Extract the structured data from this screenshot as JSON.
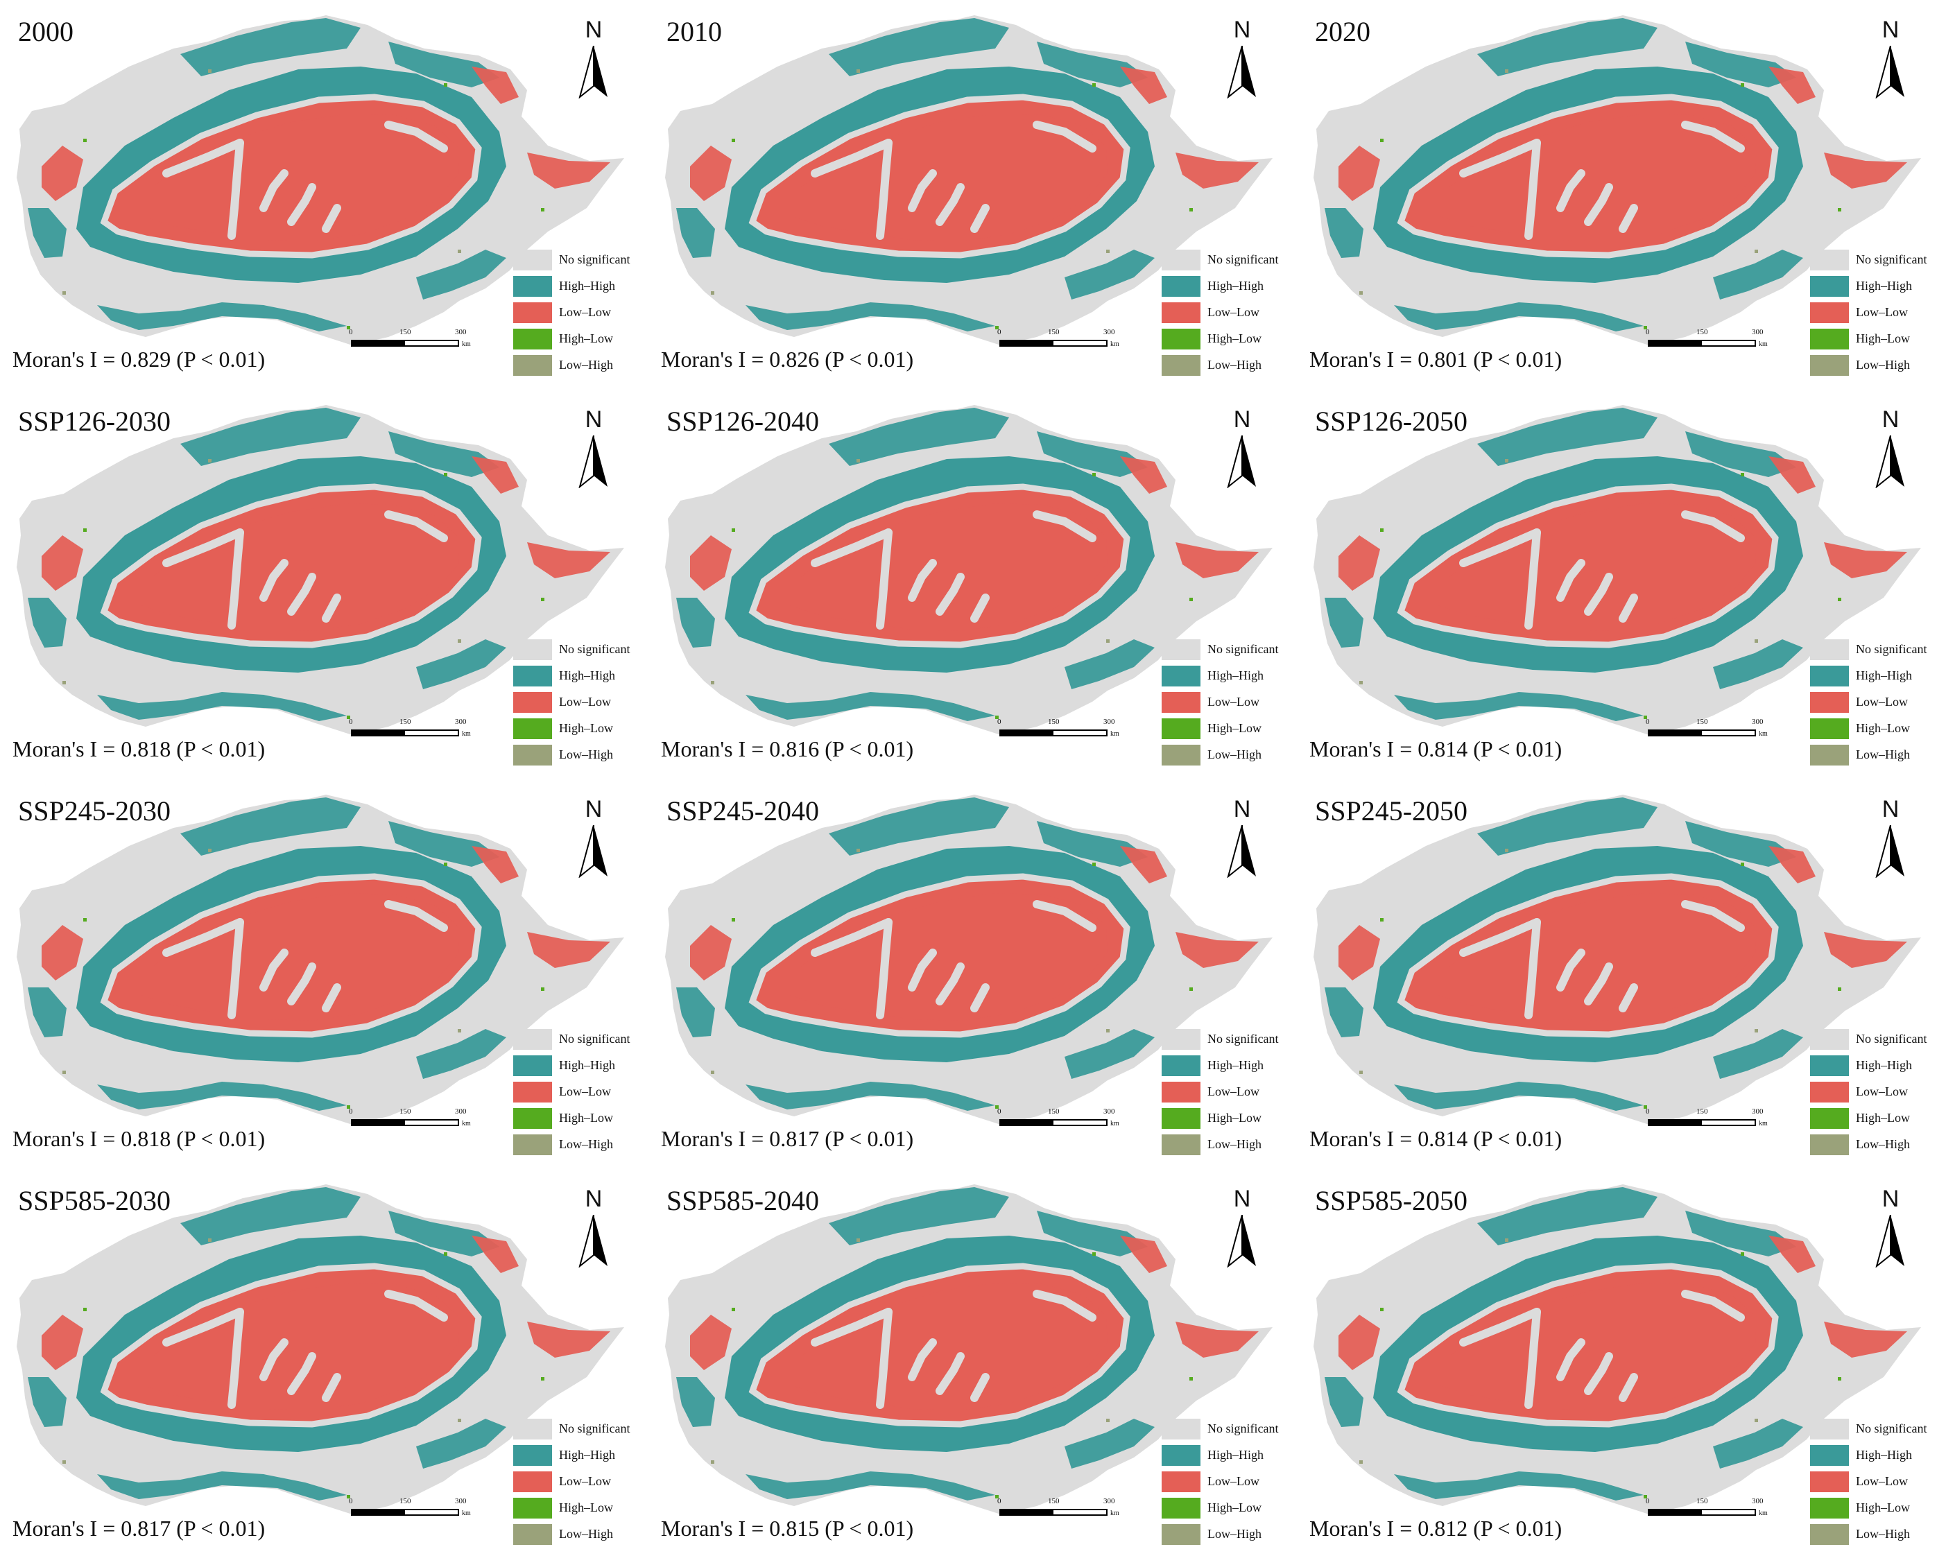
{
  "colors": {
    "no_significant": "#dcdcdc",
    "high_high": "#3a9a99",
    "low_low": "#e45f56",
    "high_low": "#55ab1f",
    "low_high": "#9aa27a"
  },
  "legend": {
    "items": [
      {
        "label": "No significant",
        "color": "#dcdcdc"
      },
      {
        "label": "High–High",
        "color": "#3a9a99"
      },
      {
        "label": "Low–Low",
        "color": "#e45f56"
      },
      {
        "label": "High–Low",
        "color": "#55ab1f"
      },
      {
        "label": "Low–High",
        "color": "#9aa27a"
      }
    ]
  },
  "north_arrow": {
    "label": "N"
  },
  "scale_bar": {
    "ticks": [
      "0",
      "150",
      "300"
    ],
    "unit": "km"
  },
  "panels": [
    {
      "title": "2000",
      "moran": "Moran's I = 0.829 (P < 0.01)"
    },
    {
      "title": "2010",
      "moran": "Moran's I = 0.826 (P < 0.01)"
    },
    {
      "title": "2020",
      "moran": "Moran's I = 0.801 (P < 0.01)"
    },
    {
      "title": "SSP126-2030",
      "moran": "Moran's I = 0.818 (P < 0.01)"
    },
    {
      "title": "SSP126-2040",
      "moran": "Moran's I = 0.816 (P < 0.01)"
    },
    {
      "title": "SSP126-2050",
      "moran": "Moran's I = 0.814 (P < 0.01)"
    },
    {
      "title": "SSP245-2030",
      "moran": "Moran's I = 0.818 (P < 0.01)"
    },
    {
      "title": "SSP245-2040",
      "moran": "Moran's I = 0.817 (P < 0.01)"
    },
    {
      "title": "SSP245-2050",
      "moran": "Moran's I = 0.814 (P < 0.01)"
    },
    {
      "title": "SSP585-2030",
      "moran": "Moran's I = 0.817 (P < 0.01)"
    },
    {
      "title": "SSP585-2040",
      "moran": "Moran's I = 0.815 (P < 0.01)"
    },
    {
      "title": "SSP585-2050",
      "moran": "Moran's I = 0.812 (P < 0.01)"
    }
  ]
}
